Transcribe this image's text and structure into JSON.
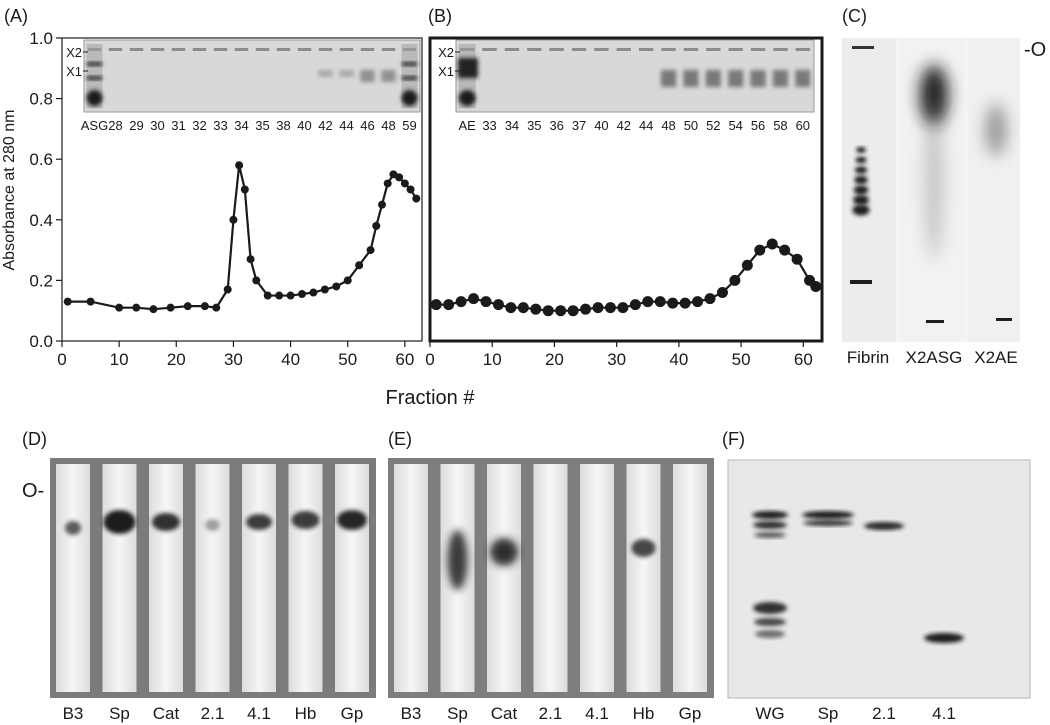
{
  "panels": {
    "A": "(A)",
    "B": "(B)",
    "C": "(C)",
    "D": "(D)",
    "E": "(E)",
    "F": "(F)"
  },
  "chart_data": [
    {
      "type": "line",
      "panel": "(A)",
      "xlabel": "Fraction #",
      "ylabel": "Absorbance at 280 nm",
      "xlim": [
        0,
        63
      ],
      "ylim": [
        0.0,
        1.0
      ],
      "xticks": [
        "0",
        "10",
        "20",
        "30",
        "40",
        "50",
        "60"
      ],
      "yticks": [
        "0.0",
        "0.2",
        "0.4",
        "0.6",
        "0.8",
        "1.0"
      ],
      "x": [
        1,
        5,
        10,
        13,
        16,
        19,
        22,
        25,
        27,
        29,
        30,
        31,
        32,
        33,
        34,
        36,
        38,
        40,
        42,
        44,
        46,
        48,
        50,
        52,
        54,
        55,
        56,
        57,
        58,
        59,
        60,
        61,
        62
      ],
      "y": [
        0.13,
        0.13,
        0.11,
        0.11,
        0.105,
        0.11,
        0.115,
        0.115,
        0.11,
        0.17,
        0.4,
        0.58,
        0.5,
        0.27,
        0.2,
        0.15,
        0.15,
        0.15,
        0.155,
        0.16,
        0.17,
        0.18,
        0.2,
        0.25,
        0.3,
        0.38,
        0.45,
        0.52,
        0.55,
        0.54,
        0.52,
        0.5,
        0.47
      ],
      "gel_markers": [
        "X2",
        "X1"
      ],
      "gel_lanes": [
        "ASG",
        "28",
        "29",
        "30",
        "31",
        "32",
        "33",
        "34",
        "35",
        "38",
        "40",
        "42",
        "44",
        "46",
        "48",
        "59"
      ]
    },
    {
      "type": "line",
      "panel": "(B)",
      "xlim": [
        0,
        63
      ],
      "ylim": [
        0.0,
        1.0
      ],
      "xticks": [
        "0",
        "10",
        "20",
        "30",
        "40",
        "50",
        "60"
      ],
      "x": [
        1,
        3,
        5,
        7,
        9,
        11,
        13,
        15,
        17,
        19,
        21,
        23,
        25,
        27,
        29,
        31,
        33,
        35,
        37,
        39,
        41,
        43,
        45,
        47,
        49,
        51,
        53,
        55,
        57,
        59,
        61,
        62
      ],
      "y": [
        0.12,
        0.12,
        0.13,
        0.14,
        0.13,
        0.12,
        0.11,
        0.11,
        0.105,
        0.1,
        0.1,
        0.1,
        0.105,
        0.11,
        0.11,
        0.11,
        0.12,
        0.13,
        0.13,
        0.125,
        0.125,
        0.13,
        0.14,
        0.16,
        0.2,
        0.25,
        0.3,
        0.32,
        0.3,
        0.27,
        0.2,
        0.18
      ],
      "gel_markers": [
        "X2",
        "X1"
      ],
      "gel_lanes": [
        "AE",
        "33",
        "34",
        "35",
        "36",
        "37",
        "40",
        "42",
        "44",
        "48",
        "50",
        "52",
        "54",
        "56",
        "58",
        "60"
      ]
    }
  ],
  "panel_c": {
    "origin": "-O",
    "lanes": [
      "Fibrin",
      "X2ASG",
      "X2AE"
    ]
  },
  "panel_d": {
    "origin": "O-",
    "lanes": [
      "B3",
      "Sp",
      "Cat",
      "2.1",
      "4.1",
      "Hb",
      "Gp"
    ]
  },
  "panel_e": {
    "lanes": [
      "B3",
      "Sp",
      "Cat",
      "2.1",
      "4.1",
      "Hb",
      "Gp"
    ]
  },
  "panel_f": {
    "lanes": [
      "WG",
      "Sp",
      "2.1",
      "4.1"
    ]
  },
  "colors": {
    "ink": "#1a1a1a",
    "gel_bg": "#d9d9d9",
    "strip_bg": "#f1f1f1",
    "gel_frame": "#8a8a8a"
  }
}
